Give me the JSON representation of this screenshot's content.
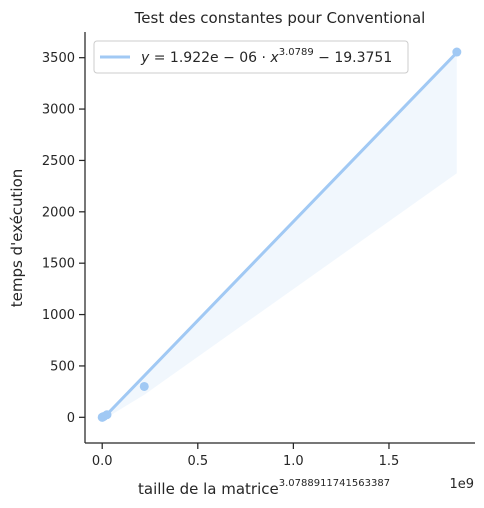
{
  "chart_data": {
    "type": "scatter",
    "title": "Test des constantes pour Conventional",
    "xlabel": "taille de la matrice",
    "xlabel_exponent": "3.0788911741563387",
    "x_offset_label": "1e9",
    "ylabel": "temps d'exécution",
    "xlim": [
      -0.09,
      1.95
    ],
    "ylim": [
      -250,
      3750
    ],
    "x_ticks": [
      0.0,
      0.5,
      1.0,
      1.5
    ],
    "x_tick_labels": [
      "0.0",
      "0.5",
      "1.0",
      "1.5"
    ],
    "y_ticks": [
      0,
      500,
      1000,
      1500,
      2000,
      2500,
      3000,
      3500
    ],
    "y_tick_labels": [
      "0",
      "500",
      "1000",
      "1500",
      "2000",
      "2500",
      "3000",
      "3500"
    ],
    "points": [
      {
        "x": 0.0,
        "y": 0
      },
      {
        "x": 0.002,
        "y": 3
      },
      {
        "x": 0.008,
        "y": 8
      },
      {
        "x": 0.025,
        "y": 25
      },
      {
        "x": 0.22,
        "y": 300
      },
      {
        "x": 1.855,
        "y": 3555
      }
    ],
    "fit_line": {
      "x": [
        0.0,
        1.855
      ],
      "y": [
        -19.4,
        3550
      ]
    },
    "confidence_band": {
      "upper": [
        [
          0.0,
          -10
        ],
        [
          0.22,
          400
        ],
        [
          1.855,
          3560
        ]
      ],
      "lower": [
        [
          0.0,
          -30
        ],
        [
          0.22,
          220
        ],
        [
          1.855,
          2375
        ]
      ]
    },
    "legend": {
      "y_part": "y",
      "eq_part1": " = 1.922e − 06 · ",
      "x_part": "x",
      "exponent": "3.0789",
      "eq_part2": " − 19.3751",
      "placement": "top-left"
    },
    "colors": {
      "points": "#a1c9f4",
      "line": "#a1c9f4",
      "band": "#a1c9f4",
      "axis": "#262626"
    }
  }
}
